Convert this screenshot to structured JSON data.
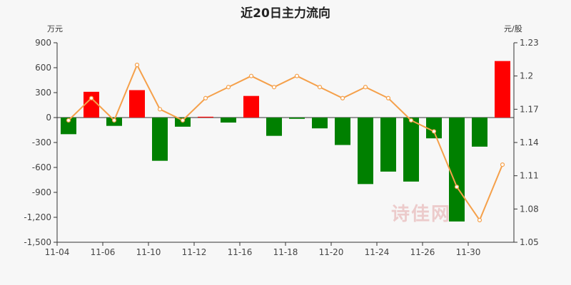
{
  "title": "近20日主力流向",
  "watermark": "诗佳网",
  "chart_data": {
    "type": "bar+line",
    "title": "近20日主力流向",
    "left_axis": {
      "unit": "万元",
      "ylim": [
        -1500,
        900
      ],
      "ticks": [
        900,
        600,
        300,
        0,
        -300,
        -600,
        -900,
        -1200,
        -1500
      ],
      "tick_labels": [
        "900",
        "600",
        "300",
        "0",
        "-300",
        "-600",
        "-900",
        "-1,200",
        "-1,500"
      ]
    },
    "right_axis": {
      "unit": "元/股",
      "ylim": [
        1.05,
        1.23
      ],
      "ticks": [
        1.23,
        1.2,
        1.17,
        1.14,
        1.11,
        1.08,
        1.05
      ],
      "tick_labels": [
        "1.23",
        "1.2",
        "1.17",
        "1.14",
        "1.11",
        "1.08",
        "1.05"
      ]
    },
    "x_tick_labels": [
      "11-04",
      "11-06",
      "11-10",
      "11-12",
      "11-16",
      "11-18",
      "11-20",
      "11-24",
      "11-26",
      "11-30"
    ],
    "series": [
      {
        "kind": "bar",
        "values": [
          -200,
          310,
          -100,
          330,
          -520,
          -110,
          10,
          -60,
          260,
          -220,
          -15,
          -130,
          -330,
          -800,
          -650,
          -770,
          -250,
          -1250,
          -350,
          680
        ]
      },
      {
        "kind": "line",
        "values": [
          1.16,
          1.18,
          1.16,
          1.21,
          1.17,
          1.16,
          1.18,
          1.19,
          1.2,
          1.19,
          1.2,
          1.19,
          1.18,
          1.19,
          1.18,
          1.16,
          1.15,
          1.1,
          1.07,
          1.12
        ]
      }
    ],
    "colors": {
      "positive": "#ff0000",
      "negative": "#008000",
      "line": "#f5a04a"
    },
    "grid": false
  }
}
